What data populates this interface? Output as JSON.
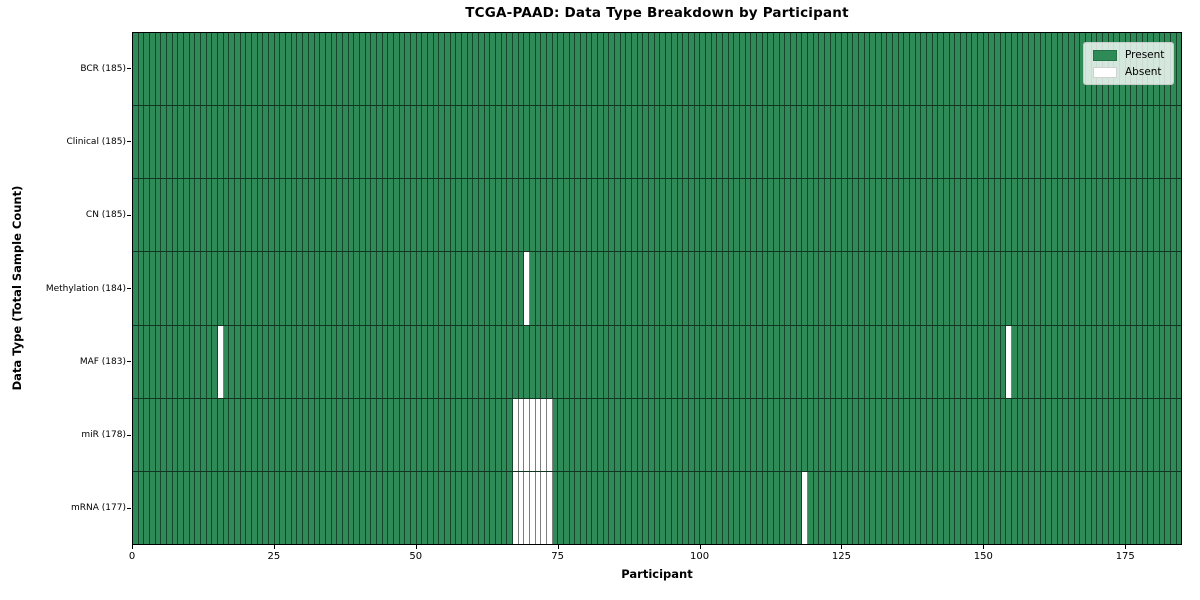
{
  "chart_data": {
    "type": "heatmap",
    "title": "TCGA-PAAD: Data Type Breakdown by Participant",
    "xlabel": "Participant",
    "ylabel": "Data Type (Total Sample Count)",
    "n_participants": 185,
    "xlim": [
      0,
      185
    ],
    "x_ticks": [
      "0",
      "25",
      "50",
      "75",
      "100",
      "125",
      "150",
      "175"
    ],
    "x_tick_values": [
      0,
      25,
      50,
      75,
      100,
      125,
      150,
      175
    ],
    "rows": [
      {
        "data_type": "BCR",
        "label": "BCR (185)",
        "total_present": 185,
        "absent_participants": []
      },
      {
        "data_type": "Clinical",
        "label": "Clinical (185)",
        "total_present": 185,
        "absent_participants": []
      },
      {
        "data_type": "CN",
        "label": "CN (185)",
        "total_present": 185,
        "absent_participants": []
      },
      {
        "data_type": "Methylation",
        "label": "Methylation (184)",
        "total_present": 184,
        "absent_participants": [
          69
        ]
      },
      {
        "data_type": "MAF",
        "label": "MAF (183)",
        "total_present": 183,
        "absent_participants": [
          15,
          154
        ]
      },
      {
        "data_type": "miR",
        "label": "miR (178)",
        "total_present": 178,
        "absent_participants": [
          67,
          68,
          69,
          70,
          71,
          72,
          73
        ]
      },
      {
        "data_type": "mRNA",
        "label": "mRNA (177)",
        "total_present": 177,
        "absent_participants": [
          67,
          68,
          69,
          70,
          71,
          72,
          73,
          118
        ]
      }
    ],
    "legend": [
      {
        "label": "Present",
        "color": "#2e8b57"
      },
      {
        "label": "Absent",
        "color": "#ffffff"
      }
    ],
    "colors": {
      "present": "#2e8b57",
      "absent": "#ffffff",
      "cell_edge": "rgba(0,0,0,0.5)",
      "row_separator": "rgba(0,0,0,0.62)",
      "axis": "#000000"
    },
    "legend_position": "upper right",
    "grid": false
  }
}
